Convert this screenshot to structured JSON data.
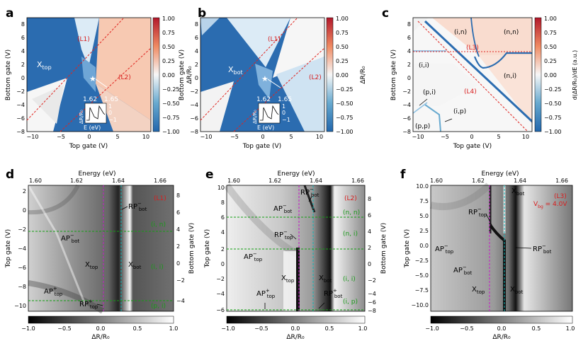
{
  "figure": {
    "panel_letters": [
      "a",
      "b",
      "c",
      "d",
      "e",
      "f"
    ]
  },
  "colors": {
    "blue": "#2b6cb0",
    "deep_blue": "#1f5fa6",
    "light_blue": "#cfe3f2",
    "peach": "#f8d3c0",
    "white": "#f7f7f7",
    "red_line": "#e0241f",
    "magenta_line": "#c51bc8",
    "cyan_line": "#10b5b5",
    "green_line": "#12a012",
    "green_text": "#1a9a1a",
    "red_text": "#d81e1e"
  },
  "chart_data": [
    {
      "id": "a",
      "type": "heatmap",
      "xlabel": "Top gate (V)",
      "ylabel": "Bottom gate (V)",
      "xlim": [
        -12,
        10
      ],
      "ylim": [
        -8,
        9
      ],
      "xticks": [
        "−10",
        "−5",
        "0",
        "5",
        "10"
      ],
      "yticks": [
        "−8",
        "−6",
        "−4",
        "−2",
        "0",
        "2",
        "4",
        "6",
        "8"
      ],
      "colorbar": {
        "label": "ΔR/R₀",
        "min": -1.0,
        "max": 1.0,
        "ticks": [
          "1.00",
          "0.75",
          "0.50",
          "0.25",
          "0.00",
          "−0.25",
          "−0.50",
          "−0.75",
          "−1.00"
        ]
      },
      "region_label_main": "X",
      "region_label_sub": "top",
      "line_labels": [
        "(L1)",
        "(L2)"
      ],
      "inset": {
        "xlabel": "E (eV)",
        "ylabel": "ΔR/R₀",
        "x_ticks": [
          "1.62",
          "1.65"
        ],
        "y_ticks": [
          "1",
          "0",
          "−1"
        ]
      }
    },
    {
      "id": "b",
      "type": "heatmap",
      "xlabel": "Top gate (V)",
      "ylabel": "Bottom gate (V)",
      "xlim": [
        -12,
        10
      ],
      "ylim": [
        -8,
        9
      ],
      "xticks": [
        "−10",
        "−5",
        "0",
        "5",
        "10"
      ],
      "yticks": [
        "−8",
        "−6",
        "−4",
        "−2",
        "0",
        "2",
        "4",
        "6",
        "8"
      ],
      "colorbar": {
        "label": "ΔR/R₀",
        "min": -1.0,
        "max": 1.0,
        "ticks": [
          "1.00",
          "0.75",
          "0.50",
          "0.25",
          "0.00",
          "−0.25",
          "−0.50",
          "−0.75",
          "−1.00"
        ]
      },
      "region_label_main": "X",
      "region_label_sub": "bot",
      "line_labels": [
        "(L1)",
        "(L2)"
      ],
      "inset": {
        "xlabel": "E (eV)",
        "ylabel": "ΔR/R₀",
        "x_ticks": [
          "1.62",
          "1.65"
        ],
        "y_ticks": [
          "1",
          "0",
          "−1"
        ]
      }
    },
    {
      "id": "c",
      "type": "heatmap",
      "xlabel": "Top gate (V)",
      "ylabel": "Bottom gate (V)",
      "xlim": [
        -12,
        10
      ],
      "ylim": [
        -8,
        9
      ],
      "xticks": [
        "−10",
        "−5",
        "0",
        "5",
        "10"
      ],
      "yticks": [
        "−8",
        "−6",
        "−4",
        "−2",
        "0",
        "2",
        "4",
        "6",
        "8"
      ],
      "colorbar": {
        "label": "d(ΔR/R₀)/dE (a.u.)",
        "min": -1.0,
        "max": 1.0,
        "ticks": [
          "1.00",
          "0.75",
          "0.50",
          "0.25",
          "0.00",
          "−0.25",
          "−0.50",
          "−0.75",
          "−1.00"
        ]
      },
      "region_labels": [
        "(i,n)",
        "(n,n)",
        "(i,i)",
        "(n,i)",
        "(p,i)",
        "(i,p)",
        "(p,p)"
      ],
      "line_labels": [
        "(L3)",
        "(L4)"
      ]
    },
    {
      "id": "d",
      "type": "heatmap",
      "top_xlabel": "Energy (eV)",
      "top_xticks": [
        "1.60",
        "1.62",
        "1.64",
        "1.66"
      ],
      "ylabel": "Top gate (V)",
      "yticks": [
        "2",
        "0",
        "−2",
        "−4",
        "−6",
        "−8",
        "−10"
      ],
      "right_ylabel": "Bottom gate (V)",
      "right_yticks": [
        "8",
        "6",
        "4",
        "2",
        "0",
        "−2",
        "−4"
      ],
      "colorbar": {
        "label": "ΔR/R₀",
        "min": -1.0,
        "max": 1.0,
        "ticks": [
          "−1.0",
          "−0.5",
          "0.0",
          "0.5",
          "1.0"
        ]
      },
      "line_label": "(L1)",
      "doping_labels": [
        "(i, n)",
        "(i, i)",
        "(p, i)"
      ],
      "peak_labels": [
        {
          "main": "RP",
          "sup": "−",
          "sub": "bot"
        },
        {
          "main": "AP",
          "sup": "−",
          "sub": "bot"
        },
        {
          "main": "X",
          "sup": "",
          "sub": "top"
        },
        {
          "main": "X",
          "sup": "",
          "sub": "bot"
        },
        {
          "main": "AP",
          "sup": "+",
          "sub": "top"
        },
        {
          "main": "RP",
          "sup": "+",
          "sub": "top"
        }
      ]
    },
    {
      "id": "e",
      "type": "heatmap",
      "top_xlabel": "Energy (eV)",
      "top_xticks": [
        "1.60",
        "1.62",
        "1.64",
        "1.66"
      ],
      "ylabel": "Top gate (V)",
      "yticks": [
        "10",
        "8",
        "6",
        "4",
        "2",
        "0",
        "−2",
        "−4",
        "−6"
      ],
      "right_ylabel": "Bottom gate (V)",
      "right_yticks": [
        "8",
        "6",
        "4",
        "2",
        "0",
        "−2",
        "−4",
        "−6",
        "−8"
      ],
      "colorbar": {
        "label": "ΔR/R₀",
        "min": -1.0,
        "max": 1.0,
        "ticks": [
          "−1.0",
          "−0.5",
          "0.0",
          "0.5",
          "1.0"
        ]
      },
      "line_label": "(L2)",
      "doping_labels": [
        "(n, n)",
        "(n, i)",
        "(i, i)",
        "(i, p)"
      ],
      "peak_labels": [
        {
          "main": "RP",
          "sup": "−",
          "sub": "bot"
        },
        {
          "main": "AP",
          "sup": "−",
          "sub": "bot"
        },
        {
          "main": "RP",
          "sup": "−",
          "sub": "top"
        },
        {
          "main": "AP",
          "sup": "−",
          "sub": "top"
        },
        {
          "main": "X",
          "sup": "",
          "sub": "top"
        },
        {
          "main": "X",
          "sup": "",
          "sub": "bot"
        },
        {
          "main": "AP",
          "sup": "+",
          "sub": "top"
        },
        {
          "main": "RP",
          "sup": "+",
          "sub": "bot"
        }
      ]
    },
    {
      "id": "f",
      "type": "heatmap",
      "top_xlabel": "Energy (eV)",
      "top_xticks": [
        "1.60",
        "1.62",
        "1.64",
        "1.66"
      ],
      "ylabel": "Top gate (V)",
      "yticks": [
        "10.0",
        "7.5",
        "5.0",
        "2.5",
        "0.0",
        "−2.5",
        "−5.0",
        "−7.5",
        "−10.0"
      ],
      "colorbar": {
        "label": "ΔR/R₀",
        "min": -1.0,
        "max": 1.0,
        "ticks": [
          "−1.0",
          "−0.5",
          "0.0",
          "0.5",
          "1.0"
        ]
      },
      "line_label": "(L3)",
      "condition_main": "V",
      "condition_sub": "bg",
      "condition_value": " = 4.0V",
      "peak_labels": [
        {
          "main": "X",
          "sup": "",
          "sub": "bot"
        },
        {
          "main": "RP",
          "sup": "−",
          "sub": "top"
        },
        {
          "main": "AP",
          "sup": "−",
          "sub": "top"
        },
        {
          "main": "RP",
          "sup": "−",
          "sub": "bot"
        },
        {
          "main": "AP",
          "sup": "−",
          "sub": "bot"
        },
        {
          "main": "X",
          "sup": "",
          "sub": "top"
        },
        {
          "main": "X",
          "sup": "",
          "sub": "bot"
        }
      ]
    }
  ]
}
